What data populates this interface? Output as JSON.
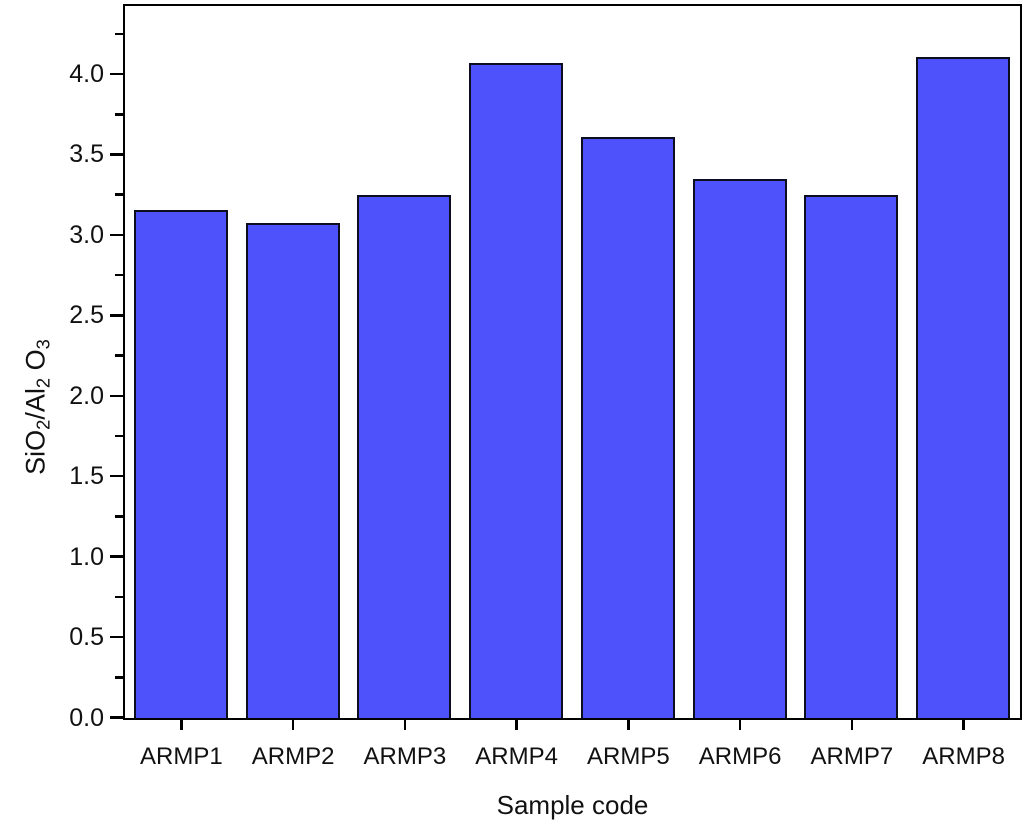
{
  "chart_data": {
    "type": "bar",
    "title": "",
    "categories": [
      "ARMP1",
      "ARMP2",
      "ARMP3",
      "ARMP4",
      "ARMP5",
      "ARMP6",
      "ARMP7",
      "ARMP8"
    ],
    "values": [
      3.16,
      3.08,
      3.25,
      4.07,
      3.61,
      3.35,
      3.25,
      4.11
    ],
    "xlabel": "Sample code",
    "ylabel": "SiO2/Al2 O3",
    "ylabel_segments": [
      {
        "text": "SiO",
        "style": "normal"
      },
      {
        "text": "2",
        "style": "sub"
      },
      {
        "text": "/Al",
        "style": "normal"
      },
      {
        "text": "2",
        "style": "sub"
      },
      {
        "text": " O",
        "style": "normal"
      },
      {
        "text": "3",
        "style": "sub"
      }
    ],
    "ylim": [
      0,
      4.42
    ],
    "ytick_major_step": 0.5,
    "ytick_minor_step": 0.25,
    "ytick_label_decimals": 1,
    "ytick_labels": [
      "0.0",
      "0.5",
      "1.0",
      "1.5",
      "2.0",
      "2.5",
      "3.0",
      "3.5",
      "4.0"
    ],
    "grid": false,
    "legend": false,
    "frame": "full-box",
    "tick_direction": "out",
    "bar_fill_color": "#4D52FA",
    "bar_edge_color": "#0D0D20",
    "frame_color": "#000000",
    "background_color": "#FFFFFF",
    "text_color": "#111111"
  }
}
